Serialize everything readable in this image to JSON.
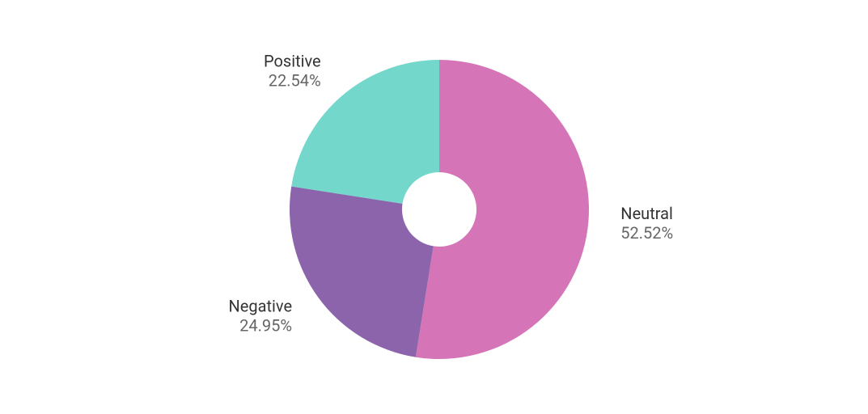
{
  "chart_data": {
    "type": "pie",
    "categories": [
      "Neutral",
      "Negative",
      "Positive"
    ],
    "values": [
      52.52,
      24.95,
      22.54
    ],
    "value_labels": [
      "52.52%",
      "24.95%",
      "22.54%"
    ],
    "colors": [
      "#d575b8",
      "#8c64ac",
      "#74d7cb"
    ]
  }
}
